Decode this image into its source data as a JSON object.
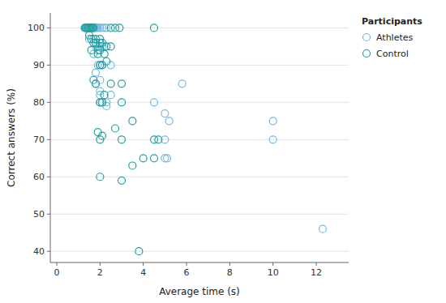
{
  "chart_data": {
    "type": "scatter",
    "xlabel": "Average time (s)",
    "ylabel": "Correct answers (%)",
    "legend_title": "Participants",
    "legend": "upper right",
    "grid": "y",
    "marker": "circle",
    "xlim": [
      -0.3,
      13.5
    ],
    "ylim": [
      37,
      104
    ],
    "xticks": [
      0,
      2,
      4,
      6,
      8,
      10,
      12
    ],
    "yticks": [
      40,
      50,
      60,
      70,
      80,
      90,
      100
    ],
    "series": [
      {
        "name": "Athletes",
        "color": "#74b9e0",
        "x": [
          1.3,
          1.35,
          1.4,
          1.45,
          1.5,
          1.55,
          1.6,
          1.65,
          1.7,
          1.75,
          1.8,
          1.85,
          1.9,
          2.0,
          2.1,
          2.2,
          2.3,
          1.5,
          1.7,
          1.8,
          1.9,
          2.0,
          2.1,
          2.2,
          1.7,
          1.9,
          2.0,
          2.1,
          2.5,
          1.8,
          2.0,
          1.8,
          2.0,
          2.0,
          2.5,
          2.0,
          2.1,
          2.3,
          4.5,
          2.3,
          5.8,
          10.0,
          5.0,
          5.2,
          10.0,
          5.0,
          5.0,
          5.1,
          12.3
        ],
        "values": [
          100,
          100,
          100,
          100,
          100,
          100,
          100,
          100,
          100,
          100,
          100,
          100,
          100,
          100,
          100,
          100,
          100,
          97,
          97,
          95,
          95,
          95,
          95,
          95,
          93,
          90,
          90,
          90,
          90,
          88,
          86,
          85,
          83,
          82,
          82,
          80,
          80,
          80,
          80,
          79,
          85,
          75,
          77,
          75,
          70,
          70,
          65,
          65,
          46
        ]
      },
      {
        "name": "Control",
        "color": "#20a0a0",
        "x": [
          1.3,
          1.35,
          1.4,
          1.45,
          1.5,
          1.55,
          1.6,
          1.65,
          1.7,
          2.5,
          2.7,
          2.9,
          4.5,
          1.5,
          1.6,
          1.8,
          2.0,
          1.7,
          1.8,
          2.0,
          2.1,
          2.3,
          2.5,
          1.6,
          1.9,
          2.0,
          1.9,
          2.2,
          2.0,
          2.1,
          2.3,
          1.7,
          1.8,
          2.5,
          3.0,
          2.2,
          2.0,
          2.1,
          3.0,
          1.9,
          2.1,
          2.0,
          3.0,
          4.5,
          4.7,
          2.0,
          3.5,
          2.7,
          3.0,
          4.0,
          4.5,
          3.5,
          3.8
        ],
        "values": [
          100,
          100,
          100,
          100,
          100,
          100,
          100,
          100,
          100,
          100,
          100,
          100,
          100,
          98,
          97,
          97,
          97,
          96,
          96,
          96,
          96,
          95,
          95,
          94,
          94,
          94,
          93,
          93,
          90,
          90,
          91,
          86,
          85,
          85,
          85,
          82,
          80,
          80,
          80,
          72,
          71,
          70,
          70,
          70,
          70,
          60,
          63,
          73,
          59,
          65,
          65,
          75,
          40
        ]
      }
    ]
  }
}
